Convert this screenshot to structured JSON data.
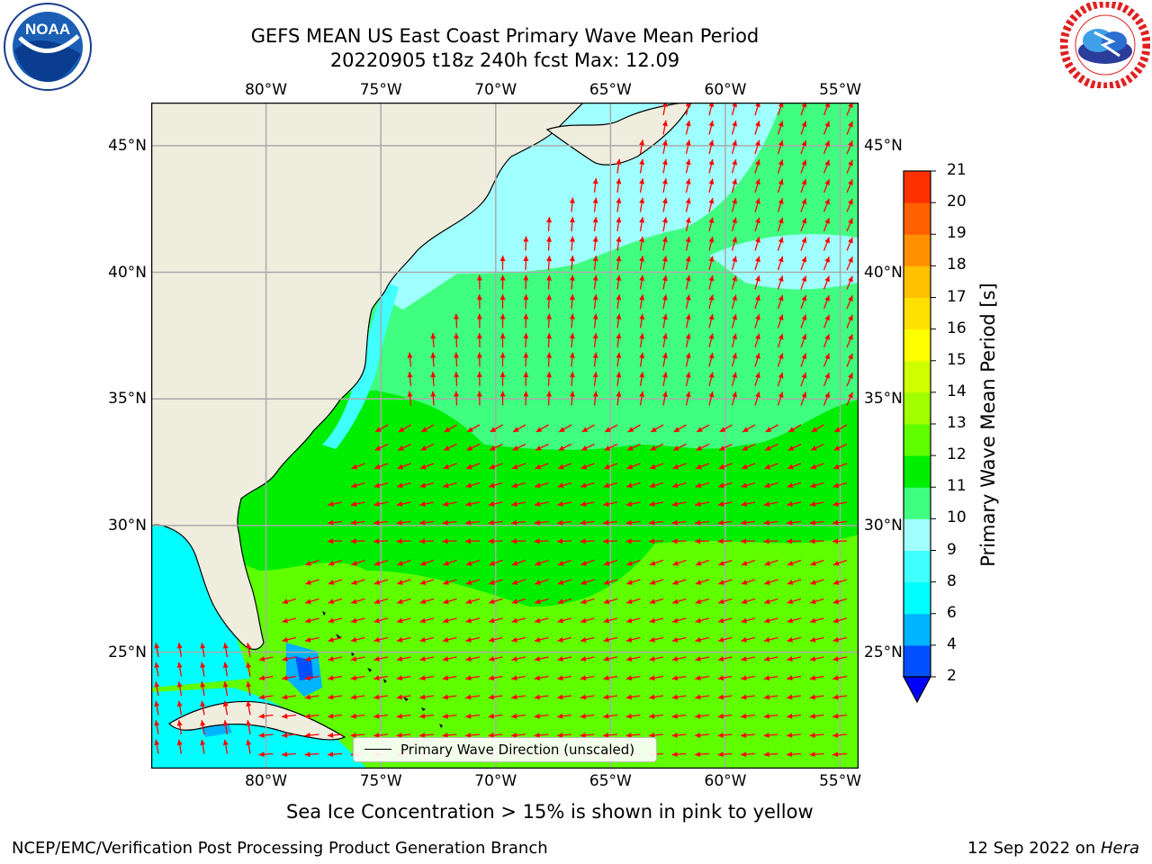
{
  "title": {
    "line1": "GEFS MEAN US East Coast Primary Wave Mean Period",
    "line2": "20220905 t18z 240h fcst   Max: 12.09"
  },
  "logos": {
    "left": {
      "text": "NOAA",
      "ring": "NATIONAL OCEANIC AND ATMOSPHERIC ADMINISTRATION · U.S. DEPARTMENT OF COMMERCE"
    },
    "right": {
      "ring": "NATIONAL WEATHER SERVICE"
    }
  },
  "chart_data": {
    "type": "map",
    "projection": "cylindrical",
    "lon_range": [
      -85,
      -54.2
    ],
    "lat_range": [
      20.4,
      46.7
    ],
    "lon_ticks": [
      {
        "value": -80,
        "label": "80°W"
      },
      {
        "value": -75,
        "label": "75°W"
      },
      {
        "value": -70,
        "label": "70°W"
      },
      {
        "value": -65,
        "label": "65°W"
      },
      {
        "value": -60,
        "label": "60°W"
      },
      {
        "value": -55,
        "label": "55°W"
      }
    ],
    "lat_ticks": [
      {
        "value": 45,
        "label": "45°N"
      },
      {
        "value": 40,
        "label": "40°N"
      },
      {
        "value": 35,
        "label": "35°N"
      },
      {
        "value": 30,
        "label": "30°N"
      },
      {
        "value": 25,
        "label": "25°N"
      }
    ],
    "grid": true,
    "colorbar": {
      "label": "Primary Wave Mean Period [s]",
      "ticks": [
        "2",
        "4",
        "6",
        "8",
        "9",
        "10",
        "11",
        "12",
        "13",
        "14",
        "15",
        "16",
        "17",
        "18",
        "19",
        "20",
        "21"
      ],
      "colors": [
        "#0050ff",
        "#00b4ff",
        "#00ffff",
        "#40ffff",
        "#a0ffff",
        "#40ff80",
        "#00ee00",
        "#60ff00",
        "#a0ff00",
        "#d0ff00",
        "#ffff00",
        "#ffe000",
        "#ffc000",
        "#ff9000",
        "#ff6000",
        "#ff3000",
        "#ff0000"
      ],
      "extend_min_color": "#0000ff"
    },
    "legend": {
      "label": "Primary Wave Direction (unscaled)",
      "placement": "bottom-center"
    },
    "arrow_color": "#ff0000",
    "land_color": "#efedde",
    "max_value": 12.09
  },
  "caption": "Sea Ice Concentration > 15% is shown in pink to yellow",
  "footer": {
    "left": "NCEP/EMC/Verification Post Processing Product Generation Branch",
    "right_date": "12 Sep 2022 on ",
    "right_host": "Hera"
  }
}
